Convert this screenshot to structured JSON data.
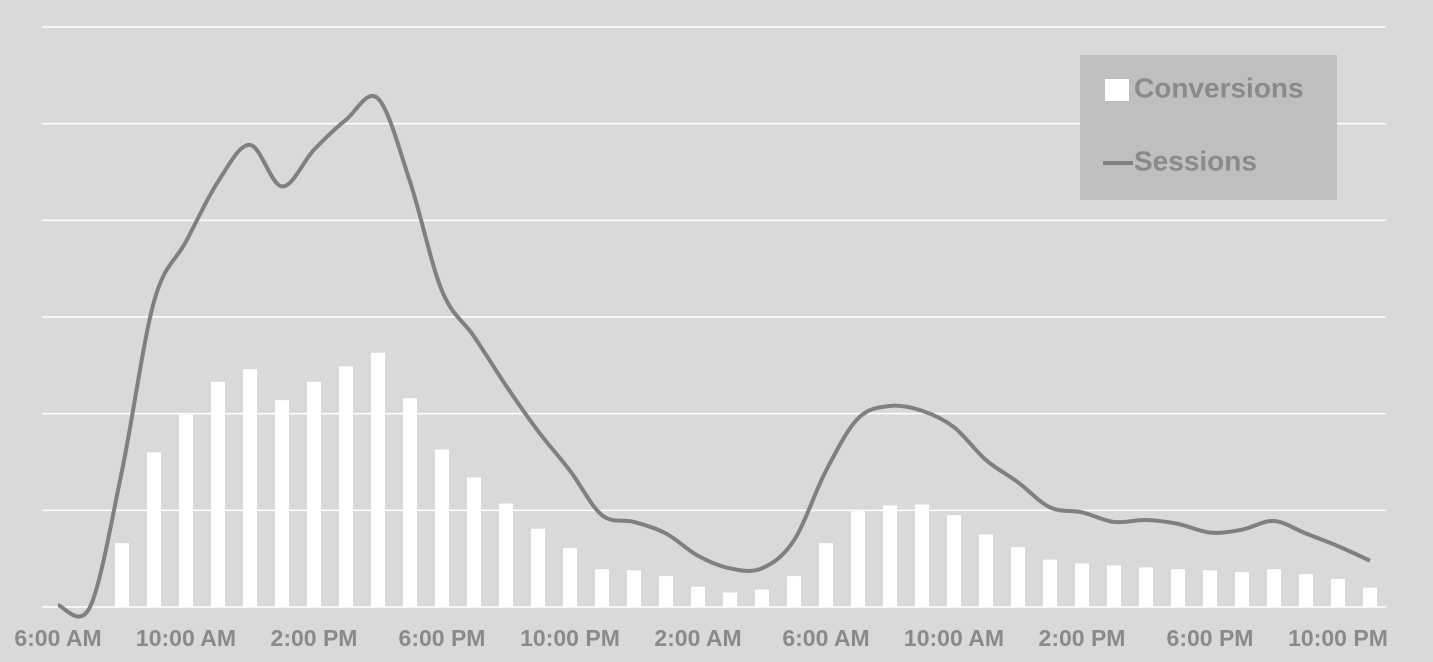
{
  "chart_data": {
    "type": "bar-line",
    "categories": [
      "6:00 AM",
      null,
      null,
      null,
      "10:00 AM",
      null,
      null,
      null,
      "2:00 PM",
      null,
      null,
      null,
      "6:00 PM",
      null,
      null,
      null,
      "10:00 PM",
      null,
      null,
      null,
      "2:00 AM",
      null,
      null,
      null,
      "6:00 AM",
      null,
      null,
      null,
      "10:00 AM",
      null,
      null,
      null,
      "2:00 PM",
      null,
      null,
      null,
      "6:00 PM",
      null,
      null,
      null,
      "10:00 PM",
      null
    ],
    "series": [
      {
        "name": "Conversions",
        "type": "bar",
        "color": "#ffffff",
        "values": [
          0,
          0,
          6.6,
          16.0,
          19.9,
          23.3,
          24.6,
          21.4,
          23.3,
          24.9,
          26.3,
          21.6,
          16.3,
          13.4,
          10.7,
          8.1,
          6.1,
          3.9,
          3.8,
          3.2,
          2.1,
          1.5,
          1.8,
          3.2,
          6.6,
          9.9,
          10.5,
          10.6,
          9.5,
          7.5,
          6.2,
          4.9,
          4.5,
          4.3,
          4.1,
          3.9,
          3.8,
          3.6,
          3.9,
          3.4,
          2.9,
          2.0
        ]
      },
      {
        "name": "Sessions",
        "type": "line",
        "color": "#808080",
        "values": [
          0.2,
          0,
          14.1,
          31.6,
          37.8,
          44.0,
          47.8,
          43.5,
          47.3,
          50.4,
          52.6,
          44.0,
          32.7,
          28.0,
          22.9,
          18.2,
          14.1,
          9.5,
          8.8,
          7.6,
          5.3,
          4.0,
          4.0,
          6.9,
          14.1,
          19.5,
          20.8,
          20.3,
          18.6,
          15.2,
          12.9,
          10.3,
          9.8,
          8.8,
          9.0,
          8.6,
          7.7,
          8.0,
          8.9,
          7.6,
          6.3,
          4.8
        ]
      }
    ],
    "ylim": [
      0,
      60
    ],
    "yticks": [
      0,
      10,
      20,
      30,
      40,
      50,
      60
    ],
    "grid": true,
    "legend": "top-right"
  }
}
